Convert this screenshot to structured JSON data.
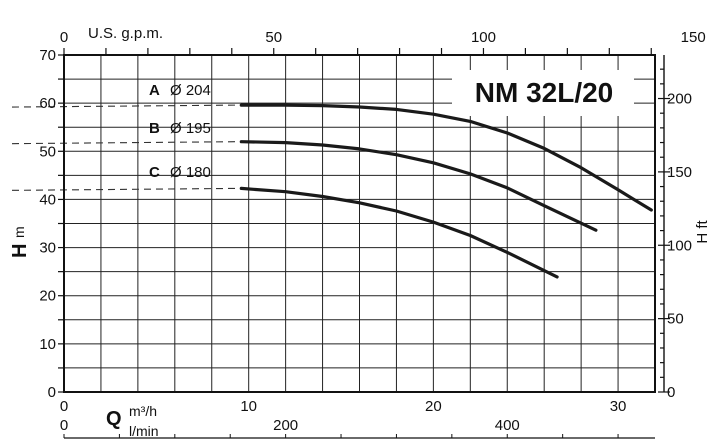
{
  "chart_data": {
    "type": "line",
    "title": "NM 32L/20",
    "x_axis_bottom": {
      "label": "Q",
      "unit": "m³/h",
      "ticks": [
        0,
        10,
        20,
        30
      ],
      "xlim": [
        0,
        32
      ]
    },
    "x_axis_bottom_secondary": {
      "unit": "l/min",
      "ticks": [
        0,
        200,
        400
      ]
    },
    "x_axis_top": {
      "label": "U.S. g.p.m.",
      "ticks": [
        0,
        50,
        100,
        150
      ]
    },
    "y_axis_left": {
      "label": "H",
      "unit": "m",
      "ticks": [
        0,
        10,
        20,
        30,
        40,
        50,
        60,
        70
      ],
      "ylim": [
        0,
        70
      ]
    },
    "y_axis_right": {
      "label": "H ft",
      "ticks": [
        0,
        50,
        100,
        150,
        200
      ]
    },
    "grid": true,
    "series": [
      {
        "name": "A",
        "diameter": "Ø 204",
        "x": [
          9.6,
          12,
          14,
          16,
          18,
          20,
          22,
          24,
          26,
          28,
          30,
          31.8
        ],
        "y": [
          59.6,
          59.6,
          59.5,
          59.2,
          58.7,
          57.7,
          56.2,
          53.8,
          50.6,
          46.6,
          42.0,
          37.8
        ]
      },
      {
        "name": "B",
        "diameter": "Ø 195",
        "x": [
          9.6,
          12,
          14,
          16,
          18,
          20,
          22,
          24,
          26,
          28.8
        ],
        "y": [
          52.0,
          51.8,
          51.3,
          50.5,
          49.3,
          47.6,
          45.3,
          42.4,
          38.7,
          33.6
        ]
      },
      {
        "name": "C",
        "diameter": "Ø 180",
        "x": [
          9.6,
          12,
          14,
          16,
          18,
          20,
          22,
          24,
          26.7
        ],
        "y": [
          42.3,
          41.6,
          40.6,
          39.3,
          37.6,
          35.3,
          32.5,
          29.0,
          23.9
        ]
      }
    ]
  }
}
